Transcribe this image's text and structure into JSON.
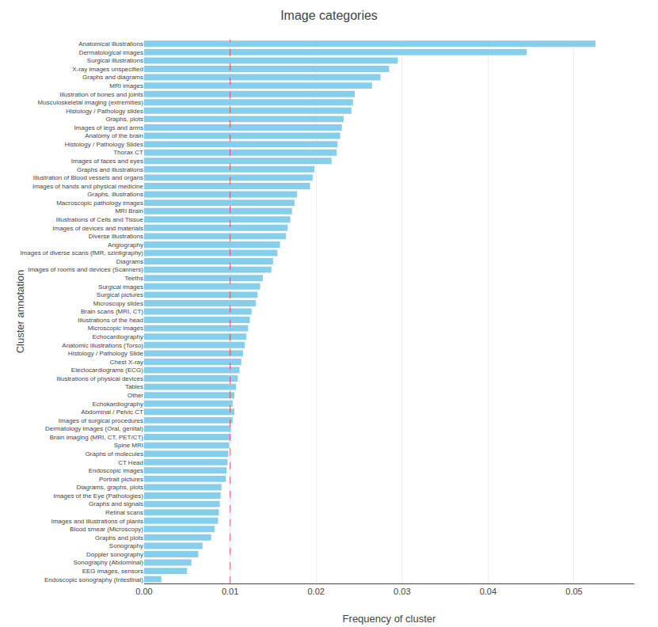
{
  "chart_data": {
    "type": "bar",
    "orientation": "horizontal",
    "title": "Image categories",
    "xlabel": "Frequency of cluster",
    "ylabel": "Cluster annotation",
    "color": "#87CEEB",
    "categories": [
      "Anatomical illustrations",
      "Dermatological images",
      "Surgical illustrations",
      "X-ray images unspecified",
      "Graphs and diagrams",
      "MRI images",
      "Illustration of bones and joints",
      "Musculoskeletal imaging (extremities)",
      "Histology / Pathology slides",
      "Graphs, plots",
      "Images of legs and arms",
      "Anatomy of the brain",
      "Histology / Pathology Slides",
      "Thorax CT",
      "Images of faces and eyes",
      "Graphs and illustrations",
      "Illustration of Blood vessels and organs",
      "Images of hands and physical medicine",
      "Graphs, illustrations",
      "Macroscopic pathology images",
      "MRI Brain",
      "Illustrations of Cells and Tissue",
      "Images of devices and materials",
      "Diverse illustrations",
      "Angiography",
      "Images of diverse scans (fMR, szintigraphy)",
      "Diagrams",
      "Images of rooms and devices (Scanners)",
      "Teeths",
      "Surgical images",
      "Surgical pictures",
      "Microscopy slides",
      "Brain scans (MRI, CT)",
      "Illustrations of the head",
      "Microscopic images",
      "Echocardiography",
      "Anatomic illustrations (Torso)",
      "Histology / Pathology Slide",
      "Chest X-ray",
      "Electocardiograms (ECG)",
      "Illustrations of physical devices",
      "Tables",
      "Other",
      "Echokardiography",
      "Abdominal / Pelvic CT",
      "Images of surgical procedures",
      "Dermatology images (Oral, genital)",
      "Brain imaging (MRI, CT, PET/CT)",
      "Spine MRI",
      "Graphs of molecules",
      "CT Head",
      "Endoscopic images",
      "Portrait pictures",
      "Diagrams, graphs, plots",
      "Images of the Eye (Pathologies)",
      "Graphs and signals",
      "Retinal scans",
      "Images and illustrations of plants",
      "Blood smear (Microscopy)",
      "Graphs and plots",
      "Sonography",
      "Doppler sonography",
      "Sonography (Abdominal)",
      "EEG images, sensors",
      "Endoscopic sonography (Intestinal)"
    ],
    "values": [
      0.0525,
      0.0445,
      0.0295,
      0.0285,
      0.0275,
      0.0265,
      0.0245,
      0.0243,
      0.0241,
      0.0232,
      0.023,
      0.0228,
      0.0225,
      0.0224,
      0.0218,
      0.0198,
      0.0196,
      0.0193,
      0.0178,
      0.0175,
      0.0172,
      0.017,
      0.0167,
      0.0165,
      0.0158,
      0.0155,
      0.015,
      0.0148,
      0.0138,
      0.0135,
      0.0132,
      0.013,
      0.0125,
      0.0123,
      0.0121,
      0.0119,
      0.0117,
      0.0115,
      0.0113,
      0.0111,
      0.0109,
      0.0107,
      0.0105,
      0.0103,
      0.0105,
      0.0103,
      0.0101,
      0.01,
      0.0099,
      0.0098,
      0.0097,
      0.0096,
      0.0095,
      0.009,
      0.0089,
      0.0088,
      0.0087,
      0.0086,
      0.0082,
      0.0078,
      0.0068,
      0.0063,
      0.0055,
      0.005,
      0.002
    ],
    "xlim": [
      0,
      0.057
    ],
    "xticks": [
      {
        "value": 0,
        "label": "0.00"
      },
      0.01,
      0.02,
      0.03,
      0.04,
      0.05
    ],
    "grid": true,
    "reference_line": {
      "x": 0.01,
      "color": "red",
      "line_style": "dashed"
    }
  }
}
